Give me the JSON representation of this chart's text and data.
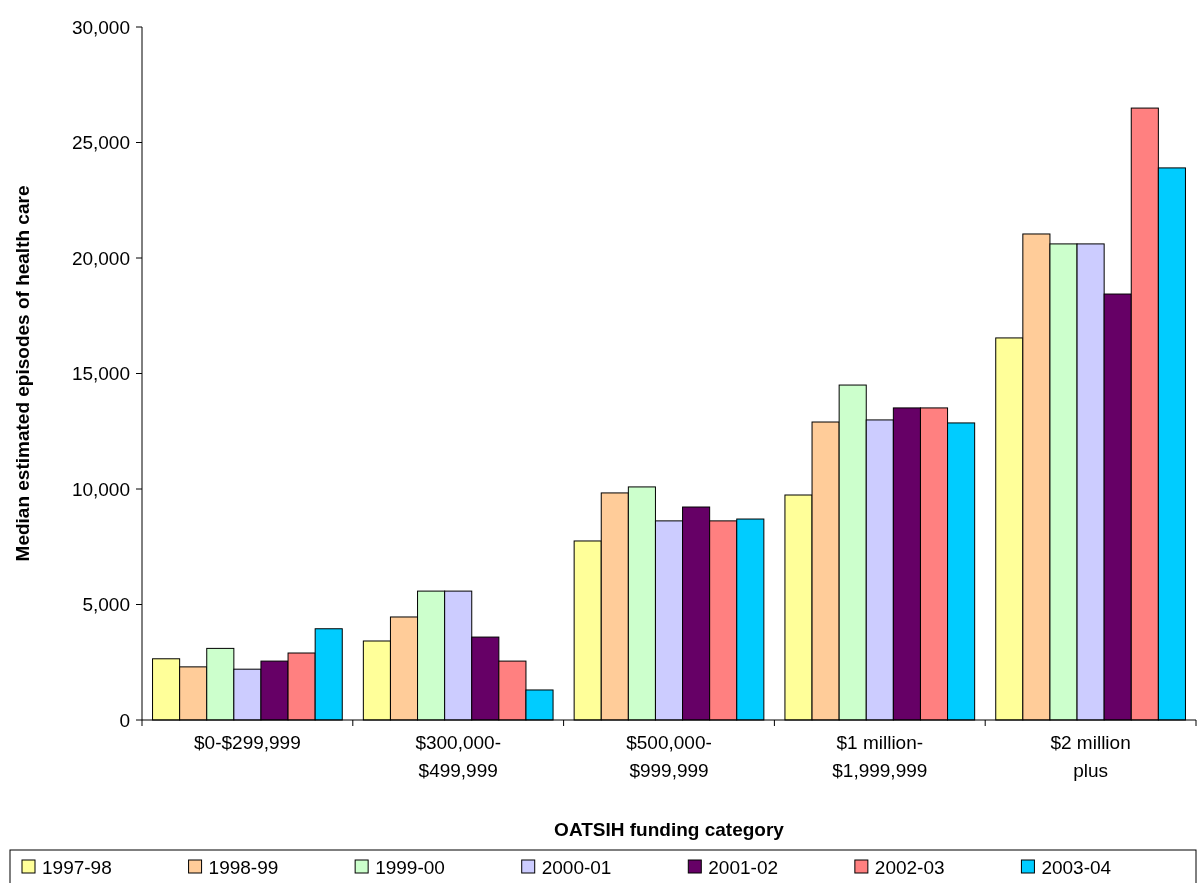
{
  "chart_data": {
    "type": "bar",
    "xlabel": "OATSIH funding category",
    "ylabel": "Median estimated episodes of health care",
    "categories": [
      "$0-$299,999",
      "$300,000-$499,999",
      "$500,000-$999,999",
      "$1 million-$1,999,999",
      "$2 million plus"
    ],
    "series": [
      {
        "name": "1997-98",
        "color": "#ffff99",
        "values": [
          2650,
          3420,
          7750,
          9740,
          16540
        ]
      },
      {
        "name": "1998-99",
        "color": "#ffcc99",
        "values": [
          2300,
          4460,
          9830,
          12900,
          21040
        ]
      },
      {
        "name": "1999-00",
        "color": "#ccffcc",
        "values": [
          3100,
          5580,
          10090,
          14500,
          20610
        ]
      },
      {
        "name": "2000-01",
        "color": "#ccccff",
        "values": [
          2200,
          5580,
          8620,
          12990,
          20610
        ]
      },
      {
        "name": "2001-02",
        "color": "#660066",
        "values": [
          2550,
          3590,
          9220,
          13510,
          18440
        ]
      },
      {
        "name": "2002-03",
        "color": "#ff8080",
        "values": [
          2900,
          2550,
          8620,
          13510,
          26490
        ]
      },
      {
        "name": "2003-04",
        "color": "#00ccff",
        "values": [
          3950,
          1300,
          8700,
          12860,
          23900
        ]
      }
    ],
    "ylim": [
      0,
      30000
    ],
    "yticks": [
      {
        "value": 0,
        "label": "0"
      },
      {
        "value": 5000,
        "label": "5,000"
      },
      {
        "value": 10000,
        "label": "10,000"
      },
      {
        "value": 15000,
        "label": "15,000"
      },
      {
        "value": 20000,
        "label": "20,000"
      },
      {
        "value": 25000,
        "label": "25,000"
      },
      {
        "value": 30000,
        "label": "30,000"
      }
    ],
    "grid": false,
    "legend": "bottom"
  }
}
